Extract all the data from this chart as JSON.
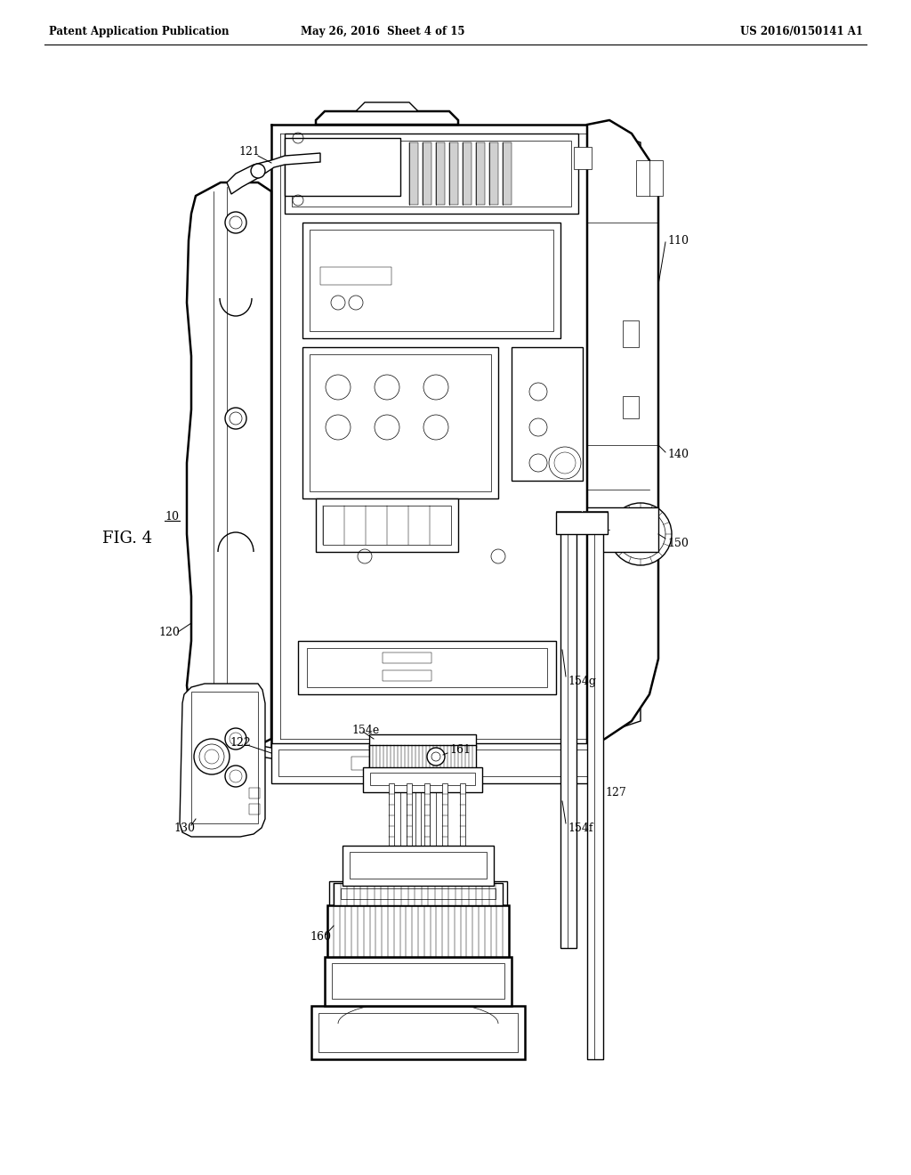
{
  "background_color": "#ffffff",
  "line_color": "#000000",
  "header_left": "Patent Application Publication",
  "header_center": "May 26, 2016  Sheet 4 of 15",
  "header_right": "US 2016/0150141 A1",
  "figure_label": "FIG. 4",
  "ref_10": "10",
  "ref_110": "110",
  "ref_120": "120",
  "ref_121": "121",
  "ref_122": "122",
  "ref_127": "127",
  "ref_130": "130",
  "ref_140": "140",
  "ref_150": "150",
  "ref_154e": "154e",
  "ref_154f": "154f",
  "ref_154g": "154g",
  "ref_160": "160",
  "ref_161": "161",
  "lw_main": 1.0,
  "lw_thick": 1.8,
  "lw_thin": 0.5,
  "lw_ultra": 0.35,
  "font_size_header": 8.5,
  "font_size_label": 10,
  "font_size_ref": 9,
  "font_size_fig": 13
}
